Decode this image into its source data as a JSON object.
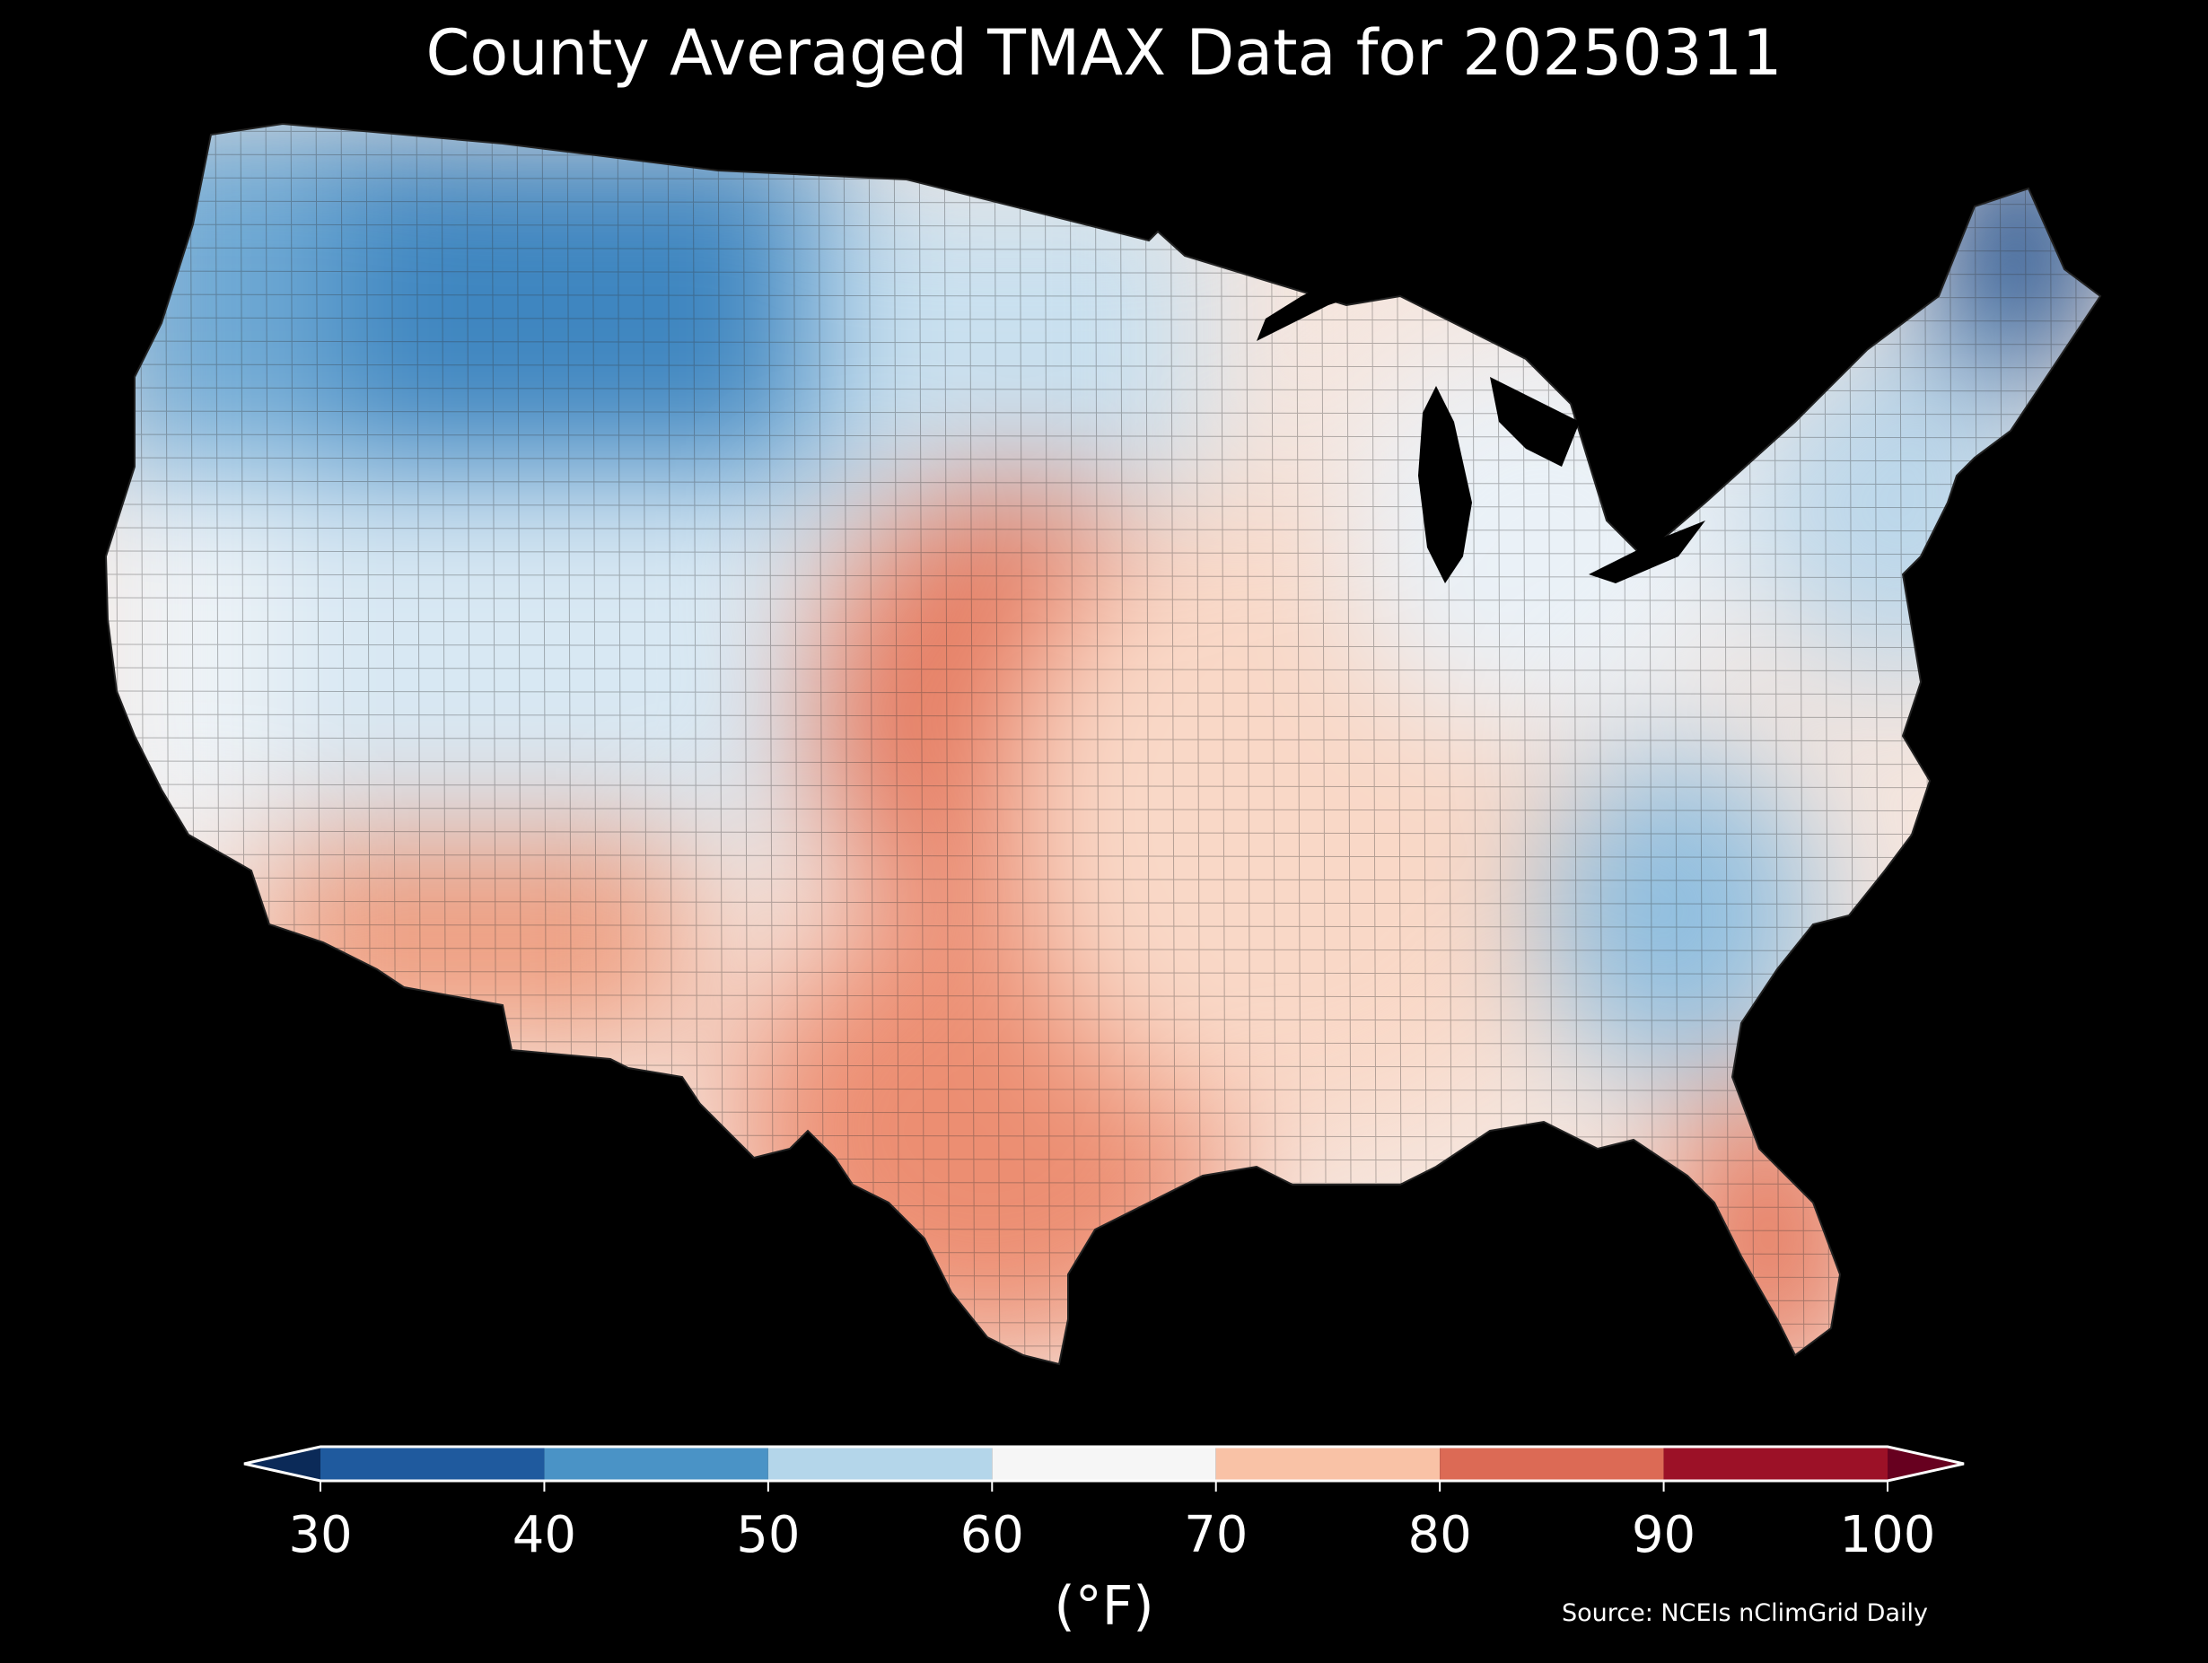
{
  "title": "County Averaged TMAX Data for 20250311",
  "colorbar": {
    "ticks": [
      "30",
      "40",
      "50",
      "60",
      "70",
      "80",
      "90",
      "100"
    ],
    "unit_label": "(°F)",
    "bins": [
      {
        "min": 30,
        "max": 40,
        "color": "#1f5a9e"
      },
      {
        "min": 40,
        "max": 50,
        "color": "#4a93c6"
      },
      {
        "min": 50,
        "max": 60,
        "color": "#b4d6ea"
      },
      {
        "min": 60,
        "max": 70,
        "color": "#f6f6f6"
      },
      {
        "min": 70,
        "max": 80,
        "color": "#f9c2a6"
      },
      {
        "min": 80,
        "max": 90,
        "color": "#dc6a55"
      },
      {
        "min": 90,
        "max": 100,
        "color": "#9c1127"
      }
    ],
    "under_color": "#0b2a58",
    "over_color": "#67001f"
  },
  "source": "Source: NCEIs nClimGrid Daily",
  "regions": [
    {
      "id": "pacific-northwest",
      "tmax": 45,
      "color": "#6fa9d4"
    },
    {
      "id": "northern-rockies",
      "tmax": 40,
      "color": "#3f86c0"
    },
    {
      "id": "northern-plains",
      "tmax": 55,
      "color": "#c9e0ef"
    },
    {
      "id": "great-basin",
      "tmax": 58,
      "color": "#d8e8f3"
    },
    {
      "id": "california-coast",
      "tmax": 63,
      "color": "#eef3f7"
    },
    {
      "id": "desert-southwest",
      "tmax": 80,
      "color": "#ee9d7f"
    },
    {
      "id": "southern-plains",
      "tmax": 85,
      "color": "#e57b60"
    },
    {
      "id": "texas",
      "tmax": 82,
      "color": "#ec8e72"
    },
    {
      "id": "midwest",
      "tmax": 70,
      "color": "#f9d8c7"
    },
    {
      "id": "great-lakes",
      "tmax": 62,
      "color": "#eaf1f7"
    },
    {
      "id": "southeast-appalachia",
      "tmax": 52,
      "color": "#8fbedf"
    },
    {
      "id": "florida",
      "tmax": 85,
      "color": "#e57b60"
    },
    {
      "id": "northeast",
      "tmax": 55,
      "color": "#bcd7ea"
    },
    {
      "id": "maine",
      "tmax": 35,
      "color": "#1d4f8e"
    }
  ]
}
